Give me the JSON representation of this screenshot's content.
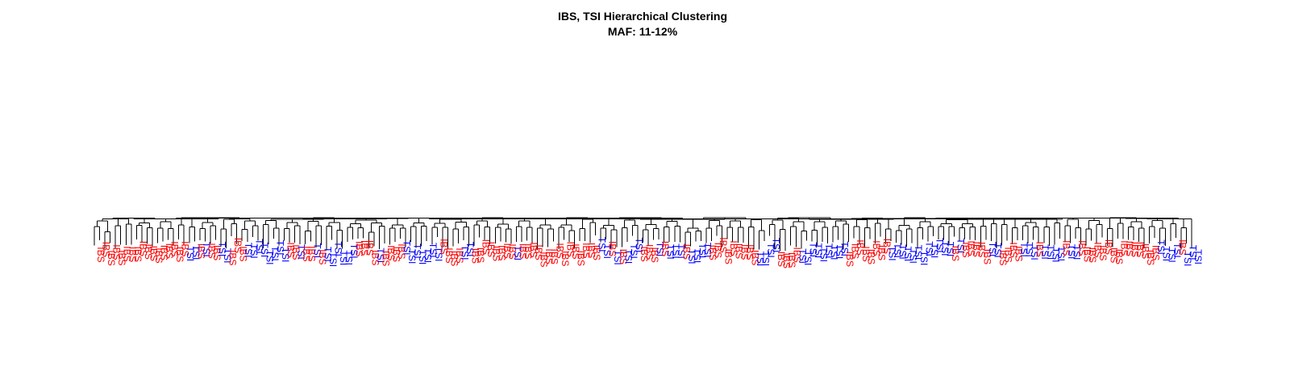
{
  "title": "IBS, TSI Hierarchical Clustering",
  "subtitle": "MAF: 11-12%",
  "colors": {
    "IBS": "#ff0000",
    "TSI": "#0000ff",
    "branch": "#000000"
  },
  "chart_data": {
    "type": "dendrogram",
    "title": "IBS, TSI Hierarchical Clustering",
    "subtitle": "MAF: 11-12%",
    "leaf_sequence": "SSSSSSSSSSSSSSSSSTTSTSSTTSSSTTTTTTTTSSTSSTSTTTTTTSSSSTSSSSTTTTTTTSSSSTTSSSSSSSSTSSSSSSSSSSSSSSSTTSTSTTTSSSTSTTTSTTTTSSSSSSSSSTTTTSSSSTTTTTTTTTSSSSSSSSTTTTTTTTTTTTSTSSSSSTTSSSSTTTSTTTTSTTSSSSSSSSSSSSSSSTTTTSTTT"
  }
}
